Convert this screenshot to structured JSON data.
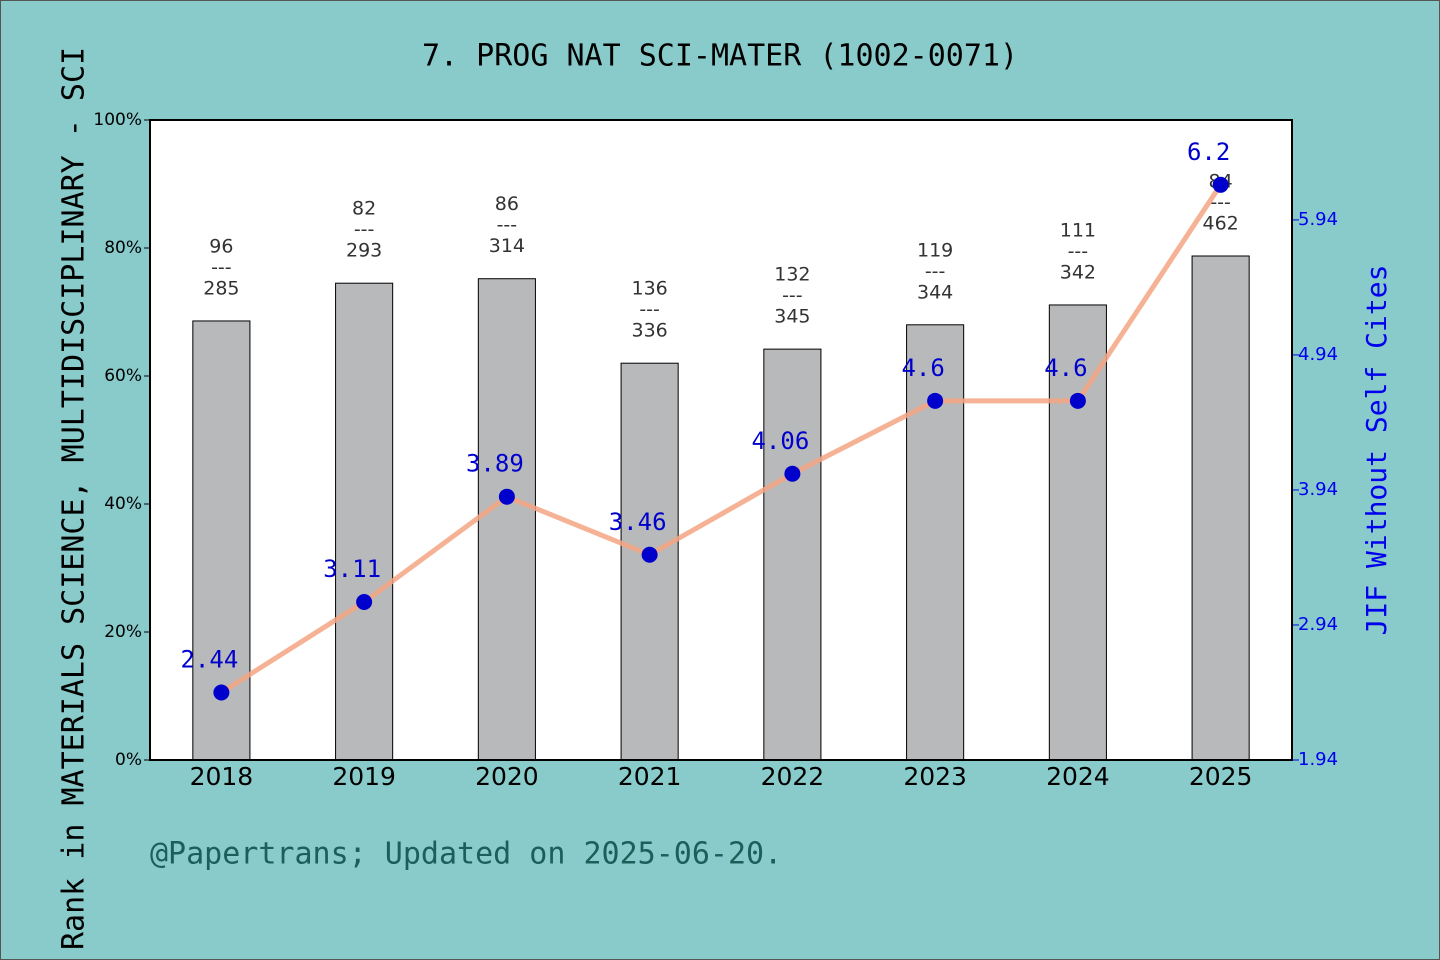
{
  "chart_data": {
    "type": "bar",
    "title": "7. PROG NAT SCI-MATER (1002-0071)",
    "y_label": "Rank in MATERIALS SCIENCE, MULTIDISCIPLINARY - SCI",
    "y2_label": "JIF Without Self Cites",
    "footer": "@Papertrans; Updated on 2025-06-20.",
    "categories": [
      "2018",
      "2019",
      "2020",
      "2021",
      "2022",
      "2023",
      "2024",
      "2025"
    ],
    "separator": "---",
    "series": [
      {
        "type": "bar",
        "color": "#b8b9bb",
        "values": [
          68.6,
          74.5,
          75.2,
          62.0,
          64.2,
          68.0,
          71.1,
          78.75
        ],
        "ranks": [
          96,
          82,
          86,
          136,
          132,
          119,
          111,
          84
        ],
        "totals": [
          285,
          293,
          314,
          336,
          345,
          344,
          342,
          462
        ]
      },
      {
        "type": "line",
        "axis": "y2",
        "color": "#f4a582",
        "marker_color": "#0000cc",
        "values": [
          2.44,
          3.11,
          3.89,
          3.46,
          4.06,
          4.6,
          4.6,
          6.2
        ]
      }
    ],
    "ylim": [
      0,
      100
    ],
    "yticks": [
      {
        "value": 0,
        "label": "0%"
      },
      {
        "value": 20,
        "label": "20%"
      },
      {
        "value": 40,
        "label": "40%"
      },
      {
        "value": 60,
        "label": "60%"
      },
      {
        "value": 80,
        "label": "80%"
      },
      {
        "value": 100,
        "label": "100%"
      }
    ],
    "y2lim": [
      1.94,
      6.68
    ],
    "y2ticks": [
      1.94,
      2.94,
      3.94,
      4.94,
      5.94
    ]
  }
}
